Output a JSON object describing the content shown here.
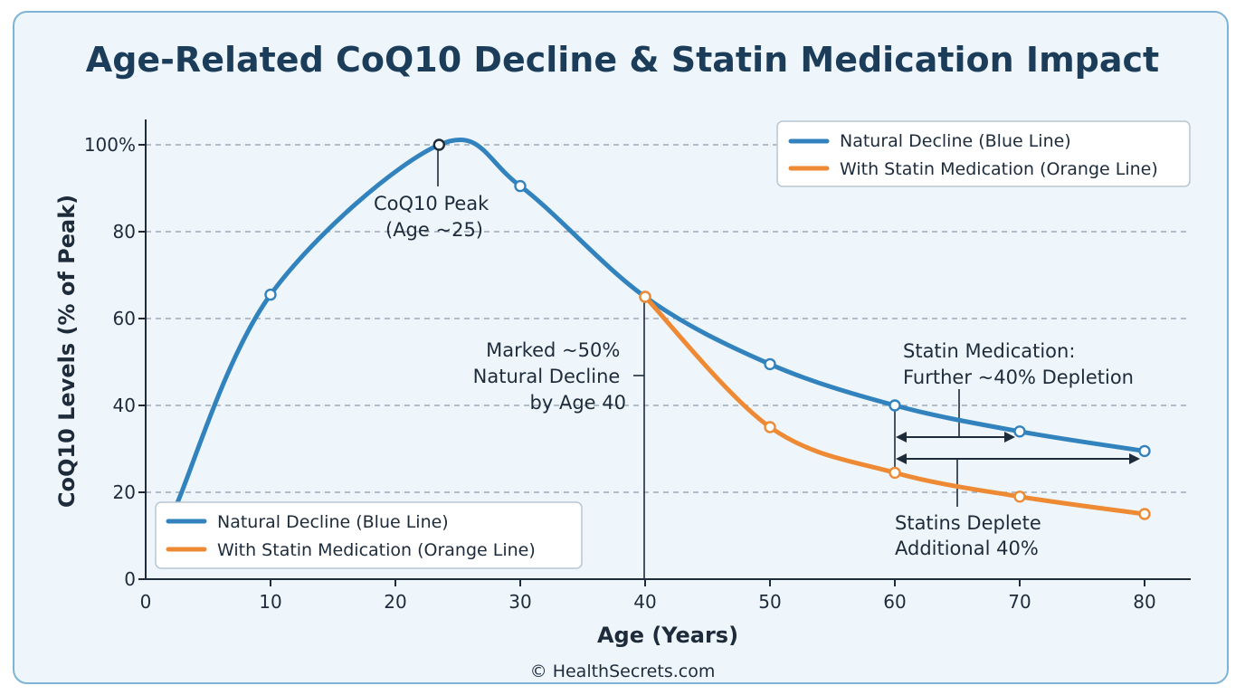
{
  "title": "Age-Related CoQ10 Decline & Statin Medication Impact",
  "credit": "© HealthSecrets.com",
  "chart_data": {
    "type": "line",
    "title": "Age-Related CoQ10 Decline & Statin Medication Impact",
    "xlabel": "Age (Years)",
    "ylabel": "CoQ10 Levels (% of Peak)",
    "xlim": [
      0,
      80
    ],
    "ylim": [
      0,
      100
    ],
    "x_ticks": [
      "0",
      "10",
      "20",
      "30",
      "40",
      "50",
      "60",
      "70",
      "80"
    ],
    "y_ticks": [
      "0",
      "20",
      "40",
      "60",
      "80",
      "100%"
    ],
    "grid": "horizontal dashed",
    "legend_placement": [
      "top-right",
      "bottom-left"
    ],
    "series": [
      {
        "name": "Natural Decline (Blue Line)",
        "color": "#3283bd",
        "x": [
          10,
          23.5,
          30,
          40,
          50,
          60,
          70,
          80
        ],
        "y": [
          65.5,
          100,
          90.5,
          65,
          49.5,
          40,
          34,
          29.5
        ]
      },
      {
        "name": "With Statin Medication (Orange Line)",
        "color": "#ee8a34",
        "x": [
          40,
          50,
          60,
          70,
          80
        ],
        "y": [
          65,
          35,
          24.5,
          19,
          15
        ]
      }
    ],
    "annotations": [
      {
        "lines": [
          "CoQ10 Peak",
          "(Age ~25)"
        ]
      },
      {
        "lines": [
          "Marked ~50%",
          "Natural Decline",
          "by Age 40"
        ]
      },
      {
        "lines": [
          "Statin Medication:",
          "Further ~40% Depletion"
        ]
      },
      {
        "lines": [
          "Statins Deplete",
          "Additional 40%"
        ]
      }
    ]
  }
}
